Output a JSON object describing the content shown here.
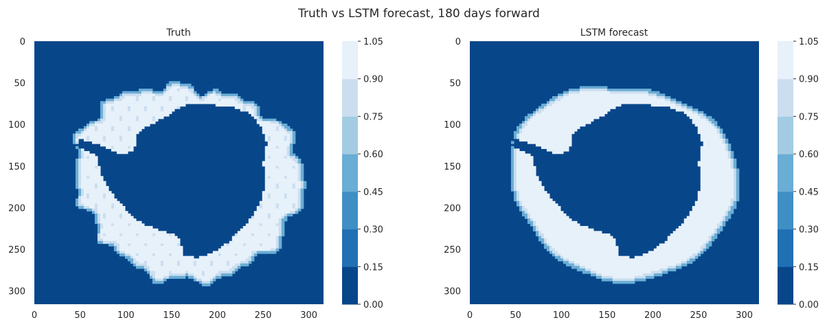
{
  "figure": {
    "title": "Truth vs LSTM forecast, 180 days forward"
  },
  "colors": {
    "bins": [
      "#08468a",
      "#2070b4",
      "#3f8fc5",
      "#6aadd5",
      "#a3cce3",
      "#cbdef0",
      "#e7f1fa"
    ],
    "text": "#262626"
  },
  "chart_data": [
    {
      "type": "heatmap",
      "title": "Truth",
      "xlim": [
        0,
        316
      ],
      "ylim": [
        316,
        0
      ],
      "xticks": [
        0,
        50,
        100,
        150,
        200,
        250,
        300
      ],
      "yticks": [
        0,
        50,
        100,
        150,
        200,
        250,
        300
      ],
      "colorbar": {
        "levels": [
          0.0,
          0.15,
          0.3,
          0.45,
          0.6,
          0.75,
          0.9,
          1.05
        ],
        "tick_labels": [
          "0.00",
          "0.15",
          "0.30",
          "0.45",
          "0.60",
          "0.75",
          "0.90",
          "1.05"
        ]
      },
      "grid": false,
      "field": {
        "ice_outer_radius_rel": 1.0,
        "continent_shape": "antarctica",
        "center": [
          160,
          165
        ],
        "outer_edge_noise": "high"
      }
    },
    {
      "type": "heatmap",
      "title": "LSTM forecast",
      "xlim": [
        0,
        316
      ],
      "ylim": [
        316,
        0
      ],
      "xticks": [
        0,
        50,
        100,
        150,
        200,
        250,
        300
      ],
      "yticks": [
        0,
        50,
        100,
        150,
        200,
        250,
        300
      ],
      "colorbar": {
        "levels": [
          0.0,
          0.15,
          0.3,
          0.45,
          0.6,
          0.75,
          0.9,
          1.05
        ],
        "tick_labels": [
          "0.00",
          "0.15",
          "0.30",
          "0.45",
          "0.60",
          "0.75",
          "0.90",
          "1.05"
        ]
      },
      "grid": false,
      "field": {
        "ice_outer_radius_rel": 1.0,
        "continent_shape": "antarctica",
        "center": [
          160,
          165
        ],
        "outer_edge_noise": "low"
      }
    }
  ]
}
